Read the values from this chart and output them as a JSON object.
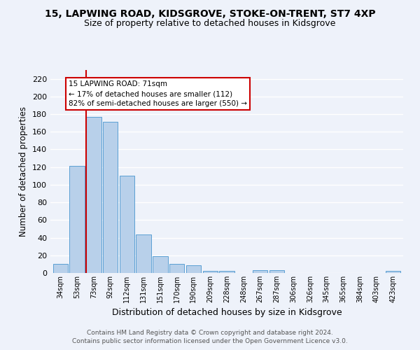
{
  "title": "15, LAPWING ROAD, KIDSGROVE, STOKE-ON-TRENT, ST7 4XP",
  "subtitle": "Size of property relative to detached houses in Kidsgrove",
  "xlabel": "Distribution of detached houses by size in Kidsgrove",
  "ylabel": "Number of detached properties",
  "categories": [
    "34sqm",
    "53sqm",
    "73sqm",
    "92sqm",
    "112sqm",
    "131sqm",
    "151sqm",
    "170sqm",
    "190sqm",
    "209sqm",
    "228sqm",
    "248sqm",
    "267sqm",
    "287sqm",
    "306sqm",
    "326sqm",
    "345sqm",
    "365sqm",
    "384sqm",
    "403sqm",
    "423sqm"
  ],
  "values": [
    10,
    121,
    177,
    171,
    110,
    44,
    19,
    10,
    9,
    2,
    2,
    0,
    3,
    3,
    0,
    0,
    0,
    0,
    0,
    0,
    2
  ],
  "bar_color": "#b8d0ea",
  "bar_edge_color": "#5a9fd4",
  "vline_x_index": 2,
  "vline_color": "#cc0000",
  "annotation_text": "15 LAPWING ROAD: 71sqm\n← 17% of detached houses are smaller (112)\n82% of semi-detached houses are larger (550) →",
  "annotation_box_color": "#ffffff",
  "annotation_box_edgecolor": "#cc0000",
  "ylim": [
    0,
    230
  ],
  "yticks": [
    0,
    20,
    40,
    60,
    80,
    100,
    120,
    140,
    160,
    180,
    200,
    220
  ],
  "footer_line1": "Contains HM Land Registry data © Crown copyright and database right 2024.",
  "footer_line2": "Contains public sector information licensed under the Open Government Licence v3.0.",
  "bg_color": "#eef2fa",
  "grid_color": "#ffffff",
  "title_fontsize": 10,
  "subtitle_fontsize": 9
}
